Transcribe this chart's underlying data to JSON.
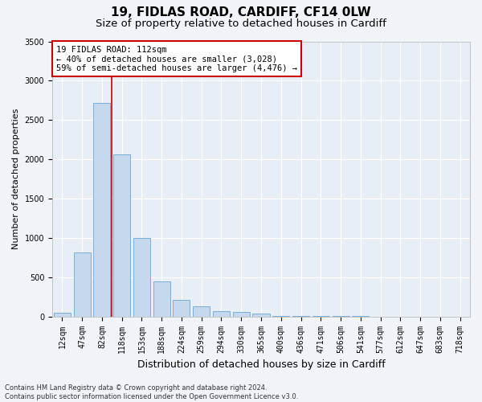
{
  "title_line1": "19, FIDLAS ROAD, CARDIFF, CF14 0LW",
  "title_line2": "Size of property relative to detached houses in Cardiff",
  "xlabel": "Distribution of detached houses by size in Cardiff",
  "ylabel": "Number of detached properties",
  "footnote": "Contains HM Land Registry data © Crown copyright and database right 2024.\nContains public sector information licensed under the Open Government Licence v3.0.",
  "categories": [
    "12sqm",
    "47sqm",
    "82sqm",
    "118sqm",
    "153sqm",
    "188sqm",
    "224sqm",
    "259sqm",
    "294sqm",
    "330sqm",
    "365sqm",
    "400sqm",
    "436sqm",
    "471sqm",
    "506sqm",
    "541sqm",
    "577sqm",
    "612sqm",
    "647sqm",
    "683sqm",
    "718sqm"
  ],
  "bar_values": [
    50,
    820,
    2720,
    2060,
    1000,
    450,
    210,
    130,
    70,
    60,
    40,
    10,
    5,
    5,
    5,
    5,
    0,
    0,
    0,
    0,
    0
  ],
  "bar_color": "#c5d8ee",
  "bar_edge_color": "#7aafd4",
  "vline_color": "#cc0000",
  "vline_x_index": 3,
  "annotation_text": "19 FIDLAS ROAD: 112sqm\n← 40% of detached houses are smaller (3,028)\n59% of semi-detached houses are larger (4,476) →",
  "annotation_box_facecolor": "#ffffff",
  "annotation_box_edgecolor": "#cc0000",
  "ylim": [
    0,
    3500
  ],
  "yticks": [
    0,
    500,
    1000,
    1500,
    2000,
    2500,
    3000,
    3500
  ],
  "plot_bg_color": "#e8eef6",
  "fig_bg_color": "#f0f4f8",
  "grid_color": "#ffffff",
  "title1_fontsize": 11,
  "title2_fontsize": 9.5,
  "ylabel_fontsize": 8,
  "xlabel_fontsize": 9,
  "tick_fontsize": 7,
  "annot_fontsize": 7.5,
  "footnote_fontsize": 6
}
